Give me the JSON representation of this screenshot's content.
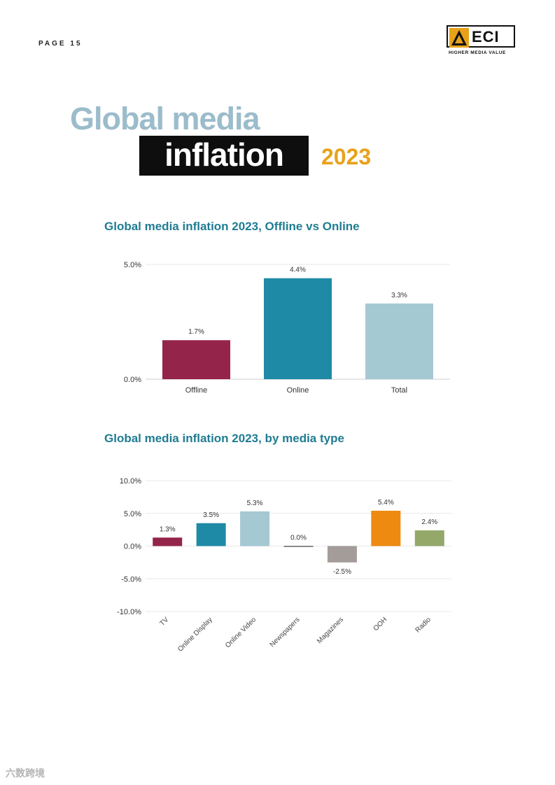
{
  "page": {
    "label": "PAGE 15"
  },
  "logo": {
    "letters": "ECI",
    "tagline": "HIGHER MEDIA VALUE"
  },
  "heading": {
    "line1": "Global media",
    "line2": "inflation",
    "year": "2023"
  },
  "colors": {
    "title_blue": "#9bbccb",
    "chart_title": "#1f7c92",
    "accent_orange": "#e8a21a"
  },
  "chart_data": [
    {
      "type": "bar",
      "title": "Global media inflation 2023, Offline vs Online",
      "categories": [
        "Offline",
        "Online",
        "Total"
      ],
      "values": [
        1.7,
        4.4,
        3.3
      ],
      "data_labels": [
        "1.7%",
        "4.4%",
        "3.3%"
      ],
      "colors": [
        "#94244a",
        "#1f8aa6",
        "#a5c9d3"
      ],
      "yticks": [
        0,
        5
      ],
      "ytick_labels": [
        "0.0%",
        "5.0%"
      ],
      "ylim": [
        0,
        5
      ],
      "grid": true,
      "xlabel": "",
      "ylabel": ""
    },
    {
      "type": "bar",
      "title": "Global media inflation 2023, by media type",
      "categories": [
        "TV",
        "Online Display",
        "Online Video",
        "Newspapers",
        "Magazines",
        "OOH",
        "Radio"
      ],
      "values": [
        1.3,
        3.5,
        5.3,
        0.0,
        -2.5,
        5.4,
        2.4
      ],
      "data_labels": [
        "1.3%",
        "3.5%",
        "5.3%",
        "0.0%",
        "-2.5%",
        "5.4%",
        "2.4%"
      ],
      "colors": [
        "#94244a",
        "#1f8aa6",
        "#a5c9d3",
        "#222222",
        "#a39c99",
        "#ee8a10",
        "#94a86a"
      ],
      "yticks": [
        10,
        5,
        0,
        -5,
        -10
      ],
      "ytick_labels": [
        "10.0%",
        "5.0%",
        "0.0%",
        "-5.0%",
        "-10.0%"
      ],
      "ylim": [
        -10,
        10
      ],
      "grid": true,
      "xlabel": "",
      "ylabel": ""
    }
  ],
  "watermark": "六数跨境"
}
